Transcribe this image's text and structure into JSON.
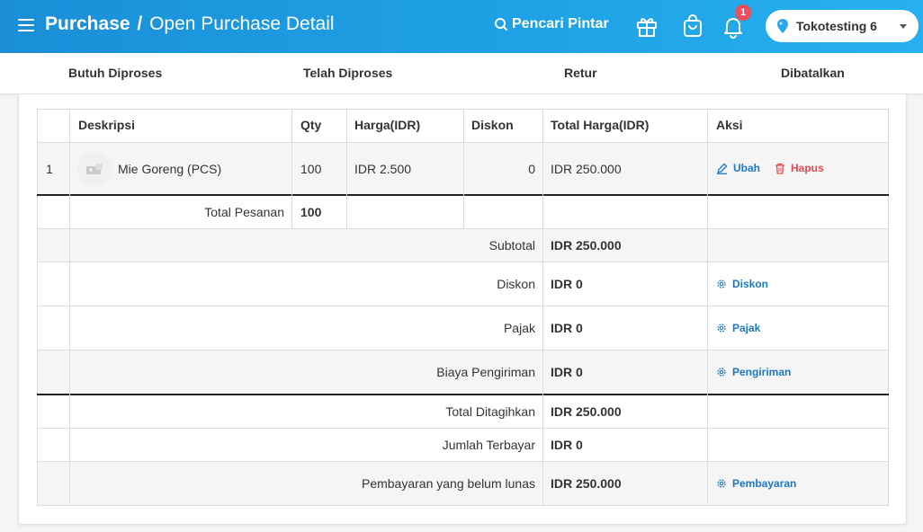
{
  "header": {
    "title_strong": "Purchase",
    "title_sep": "/",
    "title_light": "Open Purchase Detail",
    "search_label": "Pencari Pintar",
    "notification_count": "1",
    "store_name": "Tokotesting 6"
  },
  "tabs": [
    {
      "label": "Butuh Diproses"
    },
    {
      "label": "Telah Diproses"
    },
    {
      "label": "Retur"
    },
    {
      "label": "Dibatalkan"
    }
  ],
  "table": {
    "headers": {
      "description": "Deskripsi",
      "qty": "Qty",
      "price": "Harga(IDR)",
      "discount": "Diskon",
      "total": "Total Harga(IDR)",
      "action": "Aksi"
    },
    "rows": [
      {
        "no": "1",
        "name": "Mie Goreng (PCS)",
        "qty": "100",
        "price": "IDR 2.500",
        "discount": "0",
        "total": "IDR 250.000",
        "edit_label": "Ubah",
        "delete_label": "Hapus"
      }
    ],
    "total_order_label": "Total Pesanan",
    "total_order_value": "100"
  },
  "summary": [
    {
      "label": "Subtotal",
      "value": "IDR 250.000",
      "action": ""
    },
    {
      "label": "Diskon",
      "value": "IDR 0",
      "action": "Diskon"
    },
    {
      "label": "Pajak",
      "value": "IDR 0",
      "action": "Pajak"
    },
    {
      "label": "Biaya Pengiriman",
      "value": "IDR 0",
      "action": "Pengiriman"
    },
    {
      "label": "Total Ditagihkan",
      "value": "IDR 250.000",
      "action": ""
    },
    {
      "label": "Jumlah Terbayar",
      "value": "IDR 0",
      "action": ""
    },
    {
      "label": "Pembayaran yang belum lunas",
      "value": "IDR 250.000",
      "action": "Pembayaran"
    }
  ],
  "colors": {
    "header_blue": "#1a8fd8",
    "link_blue": "#1b78c8",
    "danger_red": "#e5494f",
    "badge_red": "#ef4d5c"
  }
}
